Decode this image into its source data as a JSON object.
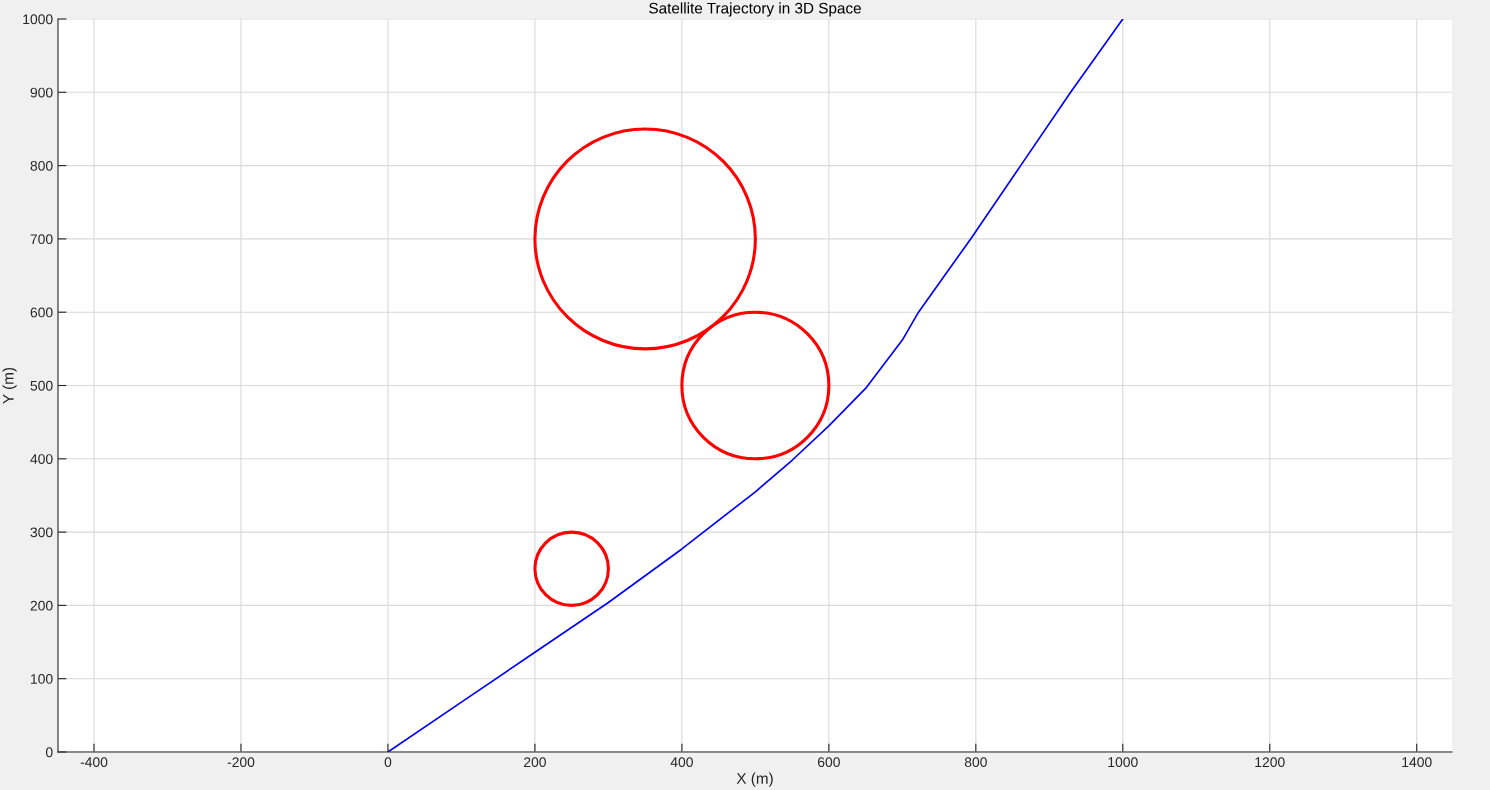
{
  "chart_data": {
    "type": "line",
    "title": "Satellite Trajectory in 3D Space",
    "xlabel": "X (m)",
    "ylabel": "Y (m)",
    "xlim": [
      -449,
      1448
    ],
    "ylim": [
      0,
      1000
    ],
    "xticks": [
      -400,
      -200,
      0,
      200,
      400,
      600,
      800,
      1000,
      1200,
      1400
    ],
    "yticks": [
      0,
      100,
      200,
      300,
      400,
      500,
      600,
      700,
      800,
      900,
      1000
    ],
    "grid": true,
    "marker": "none",
    "line_style": "solid",
    "series": [
      {
        "color": "#0000ff",
        "x": [
          0,
          100,
          200,
          300,
          400,
          500,
          550,
          600,
          650,
          700,
          722,
          793,
          861,
          929,
          1000
        ],
        "values": [
          0,
          68,
          136,
          204,
          277,
          355,
          398,
          445,
          496,
          562,
          600,
          700,
          800,
          900,
          1000
        ]
      }
    ]
  }
}
